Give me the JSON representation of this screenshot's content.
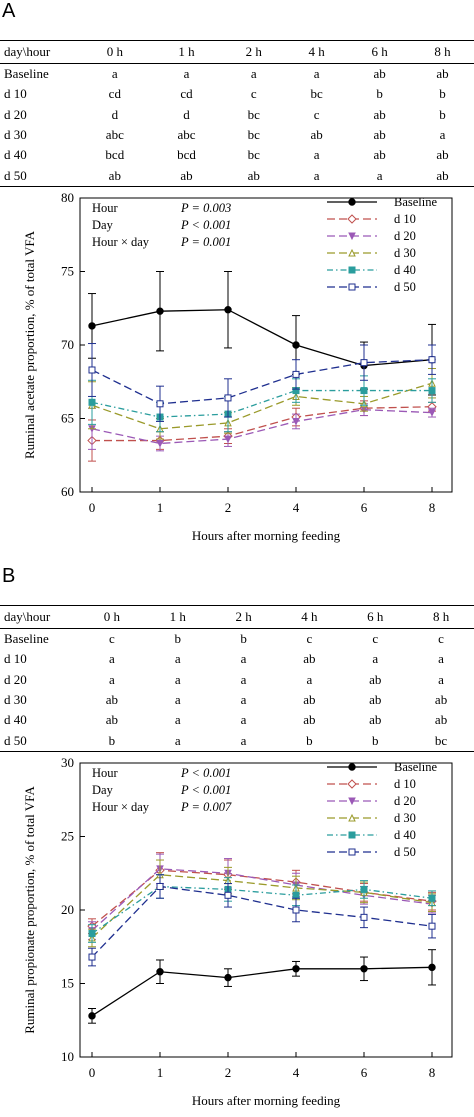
{
  "chart_data": [
    {
      "panel_label": "A",
      "type": "line",
      "table": {
        "header": [
          "day\\hour",
          "0 h",
          "1 h",
          "2 h",
          "4 h",
          "6 h",
          "8 h"
        ],
        "rows": [
          [
            "Baseline",
            "a",
            "a",
            "a",
            "a",
            "ab",
            "ab"
          ],
          [
            "d 10",
            "cd",
            "cd",
            "c",
            "bc",
            "b",
            "b"
          ],
          [
            "d 20",
            "d",
            "d",
            "bc",
            "c",
            "ab",
            "b"
          ],
          [
            "d 30",
            "abc",
            "abc",
            "bc",
            "ab",
            "ab",
            "a"
          ],
          [
            "d 40",
            "bcd",
            "bcd",
            "bc",
            "a",
            "ab",
            "ab"
          ],
          [
            "d 50",
            "ab",
            "ab",
            "ab",
            "a",
            "a",
            "ab"
          ]
        ]
      },
      "stats": [
        {
          "label": "Hour",
          "value": "P = 0.003"
        },
        {
          "label": "Day",
          "value": "P < 0.001"
        },
        {
          "label": "Hour × day",
          "value": "P = 0.001"
        }
      ],
      "xlabel": "Hours after morning feeding",
      "ylabel": "Ruminal acetate proportion, % of total VFA",
      "x": [
        0,
        1,
        2,
        4,
        6,
        8
      ],
      "x_ticks": [
        "0",
        "1",
        "2",
        "4",
        "6",
        "8"
      ],
      "ylim": [
        60,
        80
      ],
      "y_ticks": [
        60,
        65,
        70,
        75,
        80
      ],
      "legend_position": "top-right",
      "series": [
        {
          "name": "Baseline",
          "color": "#000000",
          "marker": "filled-circle",
          "dash": "solid",
          "values": [
            71.3,
            72.3,
            72.4,
            70.0,
            68.6,
            69.0
          ],
          "errors": [
            2.2,
            2.7,
            2.6,
            2.0,
            1.6,
            2.4
          ]
        },
        {
          "name": "d 10",
          "color": "#c0504d",
          "marker": "open-diamond",
          "dash": "long",
          "values": [
            63.5,
            63.5,
            63.8,
            65.1,
            65.7,
            65.8
          ],
          "errors": [
            1.4,
            0.6,
            0.5,
            0.6,
            0.5,
            0.3
          ]
        },
        {
          "name": "d 20",
          "color": "#9b59b6",
          "marker": "filled-triangle-down",
          "dash": "long",
          "values": [
            64.3,
            63.3,
            63.6,
            64.8,
            65.6,
            65.4
          ],
          "errors": [
            1.4,
            0.5,
            0.5,
            0.5,
            0.4,
            0.3
          ]
        },
        {
          "name": "d 30",
          "color": "#9a9a2a",
          "marker": "triangle-up",
          "dash": "long",
          "values": [
            65.9,
            64.3,
            64.7,
            66.5,
            66.0,
            67.4
          ],
          "errors": [
            1.6,
            0.7,
            0.7,
            0.6,
            0.5,
            1.0
          ]
        },
        {
          "name": "d 40",
          "color": "#2a9d9d",
          "marker": "filled-square",
          "dash": "dashdot",
          "values": [
            66.1,
            65.1,
            65.3,
            66.9,
            66.9,
            66.9
          ],
          "errors": [
            1.5,
            1.0,
            1.2,
            0.8,
            1.0,
            0.8
          ]
        },
        {
          "name": "d 50",
          "color": "#1f2f8f",
          "marker": "open-square",
          "dash": "long",
          "values": [
            68.3,
            66.0,
            66.4,
            68.0,
            68.8,
            69.0
          ],
          "errors": [
            1.8,
            1.2,
            1.3,
            1.0,
            1.2,
            1.0
          ]
        }
      ]
    },
    {
      "panel_label": "B",
      "type": "line",
      "table": {
        "header": [
          "day\\hour",
          "0 h",
          "1 h",
          "2 h",
          "4 h",
          "6 h",
          "8 h"
        ],
        "rows": [
          [
            "Baseline",
            "c",
            "b",
            "b",
            "c",
            "c",
            "c"
          ],
          [
            "d 10",
            "a",
            "a",
            "a",
            "ab",
            "a",
            "a"
          ],
          [
            "d 20",
            "a",
            "a",
            "a",
            "a",
            "ab",
            "a"
          ],
          [
            "d 30",
            "ab",
            "a",
            "a",
            "ab",
            "ab",
            "ab"
          ],
          [
            "d 40",
            "ab",
            "a",
            "a",
            "ab",
            "ab",
            "ab"
          ],
          [
            "d 50",
            "b",
            "a",
            "a",
            "b",
            "b",
            "bc"
          ]
        ]
      },
      "stats": [
        {
          "label": "Hour",
          "value": "P < 0.001"
        },
        {
          "label": "Day",
          "value": "P < 0.001"
        },
        {
          "label": "Hour × day",
          "value": "P = 0.007"
        }
      ],
      "xlabel": "Hours after morning feeding",
      "ylabel": "Ruminal propionate proportion, % of total VFA",
      "x": [
        0,
        1,
        2,
        4,
        6,
        8
      ],
      "x_ticks": [
        "0",
        "1",
        "2",
        "4",
        "6",
        "8"
      ],
      "ylim": [
        10,
        30
      ],
      "y_ticks": [
        10,
        15,
        20,
        25,
        30
      ],
      "legend_position": "top-right",
      "series": [
        {
          "name": "Baseline",
          "color": "#000000",
          "marker": "filled-circle",
          "dash": "solid",
          "values": [
            12.8,
            15.8,
            15.4,
            16.0,
            16.0,
            16.1
          ],
          "errors": [
            0.5,
            0.8,
            0.6,
            0.5,
            0.8,
            1.2
          ]
        },
        {
          "name": "d 10",
          "color": "#c0504d",
          "marker": "open-diamond",
          "dash": "long",
          "values": [
            18.9,
            22.7,
            22.4,
            21.9,
            21.2,
            20.6
          ],
          "errors": [
            0.5,
            1.2,
            1.0,
            0.8,
            0.6,
            0.6
          ]
        },
        {
          "name": "d 20",
          "color": "#9b59b6",
          "marker": "filled-triangle-down",
          "dash": "long",
          "values": [
            18.6,
            22.8,
            22.5,
            21.7,
            21.0,
            20.4
          ],
          "errors": [
            0.6,
            1.0,
            1.0,
            0.8,
            0.6,
            0.6
          ]
        },
        {
          "name": "d 30",
          "color": "#9a9a2a",
          "marker": "triangle-up",
          "dash": "long",
          "values": [
            18.1,
            22.4,
            22.0,
            21.5,
            21.2,
            20.5
          ],
          "errors": [
            0.6,
            1.0,
            0.9,
            0.8,
            0.7,
            0.6
          ]
        },
        {
          "name": "d 40",
          "color": "#2a9d9d",
          "marker": "filled-square",
          "dash": "dashdot",
          "values": [
            18.4,
            21.6,
            21.4,
            21.0,
            21.4,
            20.8
          ],
          "errors": [
            0.6,
            0.8,
            0.8,
            0.7,
            0.6,
            0.5
          ]
        },
        {
          "name": "d 50",
          "color": "#1f2f8f",
          "marker": "open-square",
          "dash": "long",
          "values": [
            16.8,
            21.6,
            21.0,
            20.0,
            19.5,
            18.9
          ],
          "errors": [
            0.6,
            0.8,
            0.8,
            0.8,
            0.7,
            0.8
          ]
        }
      ]
    }
  ]
}
